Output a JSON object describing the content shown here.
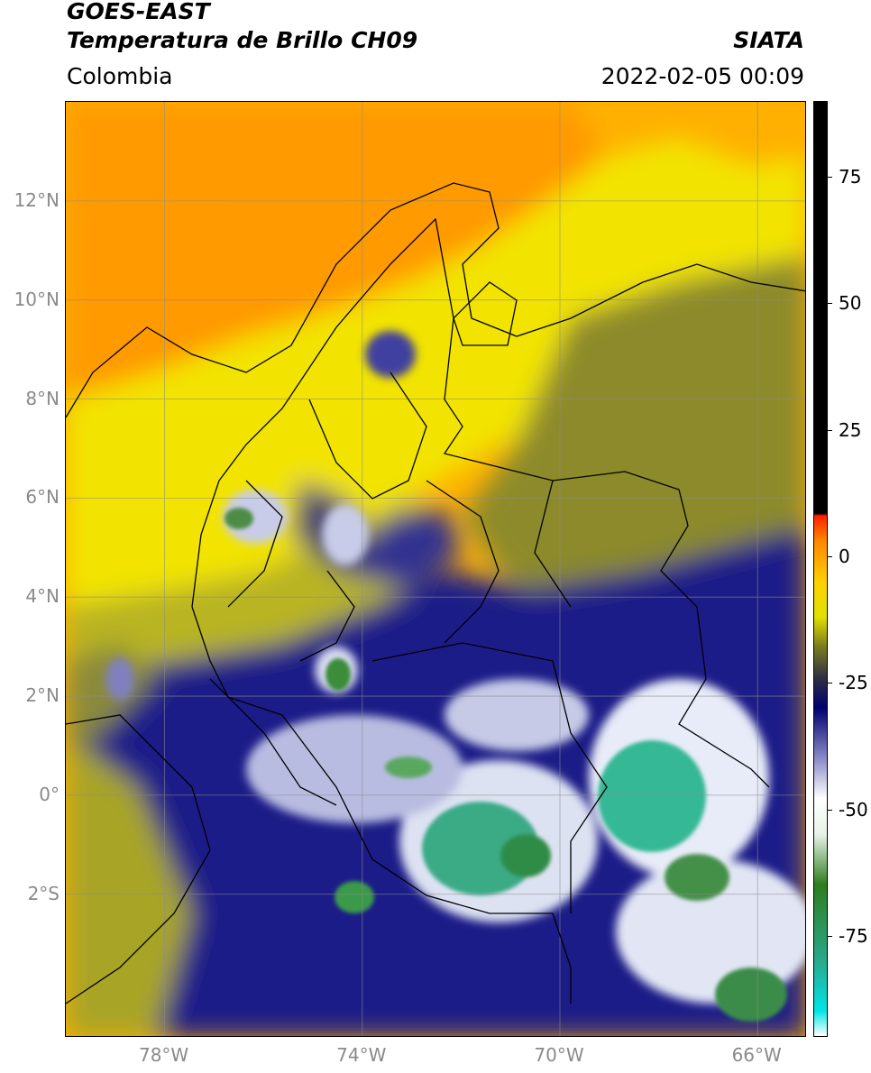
{
  "header": {
    "satellite": "GOES-EAST",
    "product": "Temperatura de Brillo CH09",
    "region": "Colombia",
    "agency": "SIATA",
    "datetime": "2022-02-05 00:09"
  },
  "axes": {
    "lat_labels": [
      {
        "text": "12°N",
        "value": 12
      },
      {
        "text": "10°N",
        "value": 10
      },
      {
        "text": "8°N",
        "value": 8
      },
      {
        "text": "6°N",
        "value": 6
      },
      {
        "text": "4°N",
        "value": 4
      },
      {
        "text": "2°N",
        "value": 2
      },
      {
        "text": "0°",
        "value": 0
      },
      {
        "text": "2°S",
        "value": -2
      }
    ],
    "lon_labels": [
      {
        "text": "78°W",
        "value": -78
      },
      {
        "text": "74°W",
        "value": -74
      },
      {
        "text": "70°W",
        "value": -70
      },
      {
        "text": "66°W",
        "value": -66
      }
    ],
    "lat_range": [
      -4.9,
      14.0
    ],
    "lon_range": [
      -80.0,
      -65.0
    ],
    "grid": true
  },
  "colorbar": {
    "range": [
      -95,
      90
    ],
    "ticks": [
      {
        "text": "75",
        "value": 75
      },
      {
        "text": "50",
        "value": 50
      },
      {
        "text": "25",
        "value": 25
      },
      {
        "text": "0",
        "value": 0
      },
      {
        "text": "-25",
        "value": -25
      },
      {
        "text": "-50",
        "value": -50
      },
      {
        "text": "-75",
        "value": -75
      }
    ],
    "stops": [
      {
        "value": -95,
        "color": "#ffffff"
      },
      {
        "value": -90,
        "color": "#00e5e5"
      },
      {
        "value": -80,
        "color": "#2aa88a"
      },
      {
        "value": -65,
        "color": "#2f7d1e"
      },
      {
        "value": -55,
        "color": "#e8f3e8"
      },
      {
        "value": -48,
        "color": "#ffffff"
      },
      {
        "value": -40,
        "color": "#8a8ac8"
      },
      {
        "value": -30,
        "color": "#000070"
      },
      {
        "value": -24,
        "color": "#303040"
      },
      {
        "value": -18,
        "color": "#7a7a20"
      },
      {
        "value": -12,
        "color": "#e0e000"
      },
      {
        "value": -5,
        "color": "#ffd000"
      },
      {
        "value": 3,
        "color": "#ff8800"
      },
      {
        "value": 8,
        "color": "#ff2000"
      },
      {
        "value": 8.5,
        "color": "#000000"
      },
      {
        "value": 90,
        "color": "#000000"
      }
    ]
  }
}
